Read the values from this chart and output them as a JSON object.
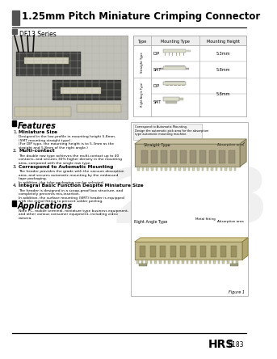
{
  "title": "1.25mm Pitch Miniature Crimping Connector",
  "series_name": "DF13 Series",
  "bg_color": "#ffffff",
  "title_fontsize": 8.5,
  "series_fontsize": 5.5,
  "features_title": "Features",
  "features": [
    {
      "num": "1.",
      "bold": "Miniature Size",
      "text": "Designed in the low-profile in mounting height 5.8mm.\n(SMT mounting straight type).\n(For DIP type, the mounting height is to 5.3mm as the\nstraight and 5.8mm of the right angle.)"
    },
    {
      "num": "2.",
      "bold": "Multi-contact",
      "text": "The double row type achieves the multi-contact up to 40\ncontacts, and secures 30% higher density in the mounting\narea, compared with the single row type."
    },
    {
      "num": "3.",
      "bold": "Correspond to Automatic Mounting",
      "text": "The header provides the grade with the vacuum absorption\narea, and secures automatic mounting by the embossed\ntape packaging.\nIn addition, the tube packaging can be selected."
    },
    {
      "num": "4.",
      "bold": "Integral Basic Function Despite Miniature Size",
      "text": "The header is designed in a scoop-proof box structure, and\ncompletely prevents mis-insertion.\nIn addition, the surface mounting (SMT) header is equipped\nwith the metal fitting to prevent solder peeling."
    }
  ],
  "applications_title": "Applications",
  "applications_text": "Note PC, mobile terminal, miniature type business equipment,\nand other various consumer equipment, including video\ncamera.",
  "table_headers": [
    "Type",
    "Mounting Type",
    "Mounting Height"
  ],
  "footer_brand": "HRS",
  "footer_page": "B183",
  "correspond_text": "Correspond to Automatic Mounting.\nDesign the automatic pick area for the absorption\ntype automatic mounting machine.",
  "figure_label": "Figure 1",
  "straight_type_label": "Straight Type",
  "right_angle_label": "Right Angle Type",
  "metal_fitting_label": "Metal fitting",
  "absorption_area1": "Absorption area",
  "absorption_area2": "Absorption area",
  "photo_bg": "#c0bfb8",
  "photo_grid": "#b0afaa",
  "diag_border": "#aaaaaa",
  "table_border": "#aaaaaa",
  "table_header_bg": "#eeeeee"
}
